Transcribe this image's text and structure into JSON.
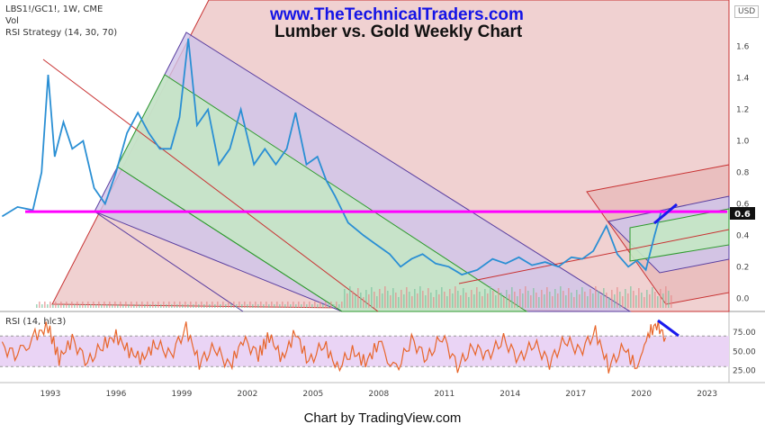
{
  "header": {
    "symbol_line": "LBS1!/GC1!, 1W, CME",
    "vol_label": "Vol",
    "strategy_label": "RSI Strategy (14, 30, 70)",
    "website": "www.TheTechnicalTraders.com",
    "title": "Lumber vs. Gold Weekly Chart",
    "currency": "USD"
  },
  "rsi_panel": {
    "label": "RSI (14, hlc3)",
    "ticks": [
      "75.00",
      "50.00",
      "25.00"
    ],
    "upper": 70,
    "lower": 30
  },
  "price_label": "0.6",
  "footer": "Chart by TradingView.com",
  "colors": {
    "price_line": "#2a8fd4",
    "support_line": "#ff00ff",
    "rsi_line": "#e8652a",
    "rsi_band": "#ead4f5",
    "trend_marker": "#1a1aee",
    "channel_red": "#e8b8b8",
    "channel_purple": "#cfc4ea",
    "channel_green": "#c4e8c4"
  },
  "chart_data": [
    {
      "type": "line",
      "title": "Lumber vs. Gold Weekly Chart",
      "x_ticks": [
        "1993",
        "1996",
        "1999",
        "2002",
        "2005",
        "2008",
        "2011",
        "2014",
        "2017",
        "2020",
        "2023"
      ],
      "y_ticks": [
        "1.6",
        "1.4",
        "1.2",
        "1.0",
        "0.8",
        "0.6",
        "0.4",
        "0.2",
        "0.0"
      ],
      "ylim": [
        -0.05,
        1.85
      ],
      "xlim": [
        1990.7,
        2024.0
      ],
      "series": [
        {
          "values": [
            [
              1990.8,
              0.52
            ],
            [
              1991.5,
              0.58
            ],
            [
              1992.2,
              0.56
            ],
            [
              1992.6,
              0.8
            ],
            [
              1992.9,
              1.42
            ],
            [
              1993.2,
              0.9
            ],
            [
              1993.6,
              1.12
            ],
            [
              1994.0,
              0.95
            ],
            [
              1994.5,
              1.0
            ],
            [
              1995.0,
              0.7
            ],
            [
              1995.5,
              0.6
            ],
            [
              1996.0,
              0.8
            ],
            [
              1996.5,
              1.05
            ],
            [
              1997.0,
              1.18
            ],
            [
              1997.5,
              1.05
            ],
            [
              1998.0,
              0.95
            ],
            [
              1998.5,
              0.95
            ],
            [
              1998.9,
              1.15
            ],
            [
              1999.3,
              1.65
            ],
            [
              1999.7,
              1.1
            ],
            [
              2000.2,
              1.2
            ],
            [
              2000.7,
              0.85
            ],
            [
              2001.2,
              0.95
            ],
            [
              2001.7,
              1.2
            ],
            [
              2002.3,
              0.85
            ],
            [
              2002.8,
              0.95
            ],
            [
              2003.3,
              0.85
            ],
            [
              2003.8,
              0.95
            ],
            [
              2004.2,
              1.18
            ],
            [
              2004.7,
              0.85
            ],
            [
              2005.2,
              0.9
            ],
            [
              2005.6,
              0.75
            ],
            [
              2006.0,
              0.65
            ],
            [
              2006.6,
              0.48
            ],
            [
              2007.3,
              0.4
            ],
            [
              2007.8,
              0.35
            ],
            [
              2008.5,
              0.28
            ],
            [
              2009.0,
              0.2
            ],
            [
              2009.5,
              0.25
            ],
            [
              2010.0,
              0.28
            ],
            [
              2010.6,
              0.22
            ],
            [
              2011.2,
              0.2
            ],
            [
              2011.8,
              0.15
            ],
            [
              2012.5,
              0.18
            ],
            [
              2013.2,
              0.25
            ],
            [
              2013.8,
              0.22
            ],
            [
              2014.4,
              0.26
            ],
            [
              2015.0,
              0.21
            ],
            [
              2015.6,
              0.23
            ],
            [
              2016.2,
              0.2
            ],
            [
              2016.8,
              0.26
            ],
            [
              2017.3,
              0.25
            ],
            [
              2017.8,
              0.3
            ],
            [
              2018.4,
              0.46
            ],
            [
              2018.9,
              0.28
            ],
            [
              2019.4,
              0.2
            ],
            [
              2019.8,
              0.24
            ],
            [
              2020.2,
              0.18
            ],
            [
              2020.6,
              0.4
            ],
            [
              2020.9,
              0.55
            ],
            [
              2021.1,
              0.56
            ]
          ]
        }
      ],
      "annotations": {
        "horizontal_support": 0.55,
        "last_price": 0.6
      }
    },
    {
      "type": "line",
      "title": "RSI (14, hlc3)",
      "x_ticks": [
        "1993",
        "1996",
        "1999",
        "2002",
        "2005",
        "2008",
        "2011",
        "2014",
        "2017",
        "2020",
        "2023"
      ],
      "y_ticks": [
        "75.00",
        "50.00",
        "25.00"
      ],
      "ylim": [
        15,
        95
      ],
      "band": [
        30,
        70
      ],
      "series": [
        {
          "values": [
            [
              1990.8,
              55
            ],
            [
              1991.5,
              45
            ],
            [
              1992.3,
              70
            ],
            [
              1992.9,
              82
            ],
            [
              1993.4,
              40
            ],
            [
              1994.0,
              65
            ],
            [
              1994.7,
              35
            ],
            [
              1995.4,
              58
            ],
            [
              1996.0,
              70
            ],
            [
              1996.6,
              50
            ],
            [
              1997.2,
              40
            ],
            [
              1997.8,
              60
            ],
            [
              1998.5,
              45
            ],
            [
              1999.2,
              80
            ],
            [
              1999.8,
              35
            ],
            [
              2000.5,
              55
            ],
            [
              2001.2,
              30
            ],
            [
              2001.8,
              65
            ],
            [
              2002.5,
              45
            ],
            [
              2003.0,
              70
            ],
            [
              2003.6,
              40
            ],
            [
              2004.2,
              75
            ],
            [
              2004.8,
              35
            ],
            [
              2005.5,
              60
            ],
            [
              2006.1,
              28
            ],
            [
              2006.8,
              50
            ],
            [
              2007.4,
              35
            ],
            [
              2008.0,
              60
            ],
            [
              2008.8,
              25
            ],
            [
              2009.5,
              65
            ],
            [
              2010.2,
              40
            ],
            [
              2010.9,
              70
            ],
            [
              2011.6,
              30
            ],
            [
              2012.3,
              55
            ],
            [
              2013.0,
              45
            ],
            [
              2013.7,
              65
            ],
            [
              2014.4,
              40
            ],
            [
              2015.1,
              60
            ],
            [
              2015.8,
              35
            ],
            [
              2016.5,
              65
            ],
            [
              2017.2,
              50
            ],
            [
              2017.9,
              75
            ],
            [
              2018.5,
              30
            ],
            [
              2019.2,
              55
            ],
            [
              2019.8,
              28
            ],
            [
              2020.3,
              72
            ],
            [
              2020.7,
              85
            ],
            [
              2021.1,
              68
            ]
          ]
        }
      ]
    }
  ]
}
